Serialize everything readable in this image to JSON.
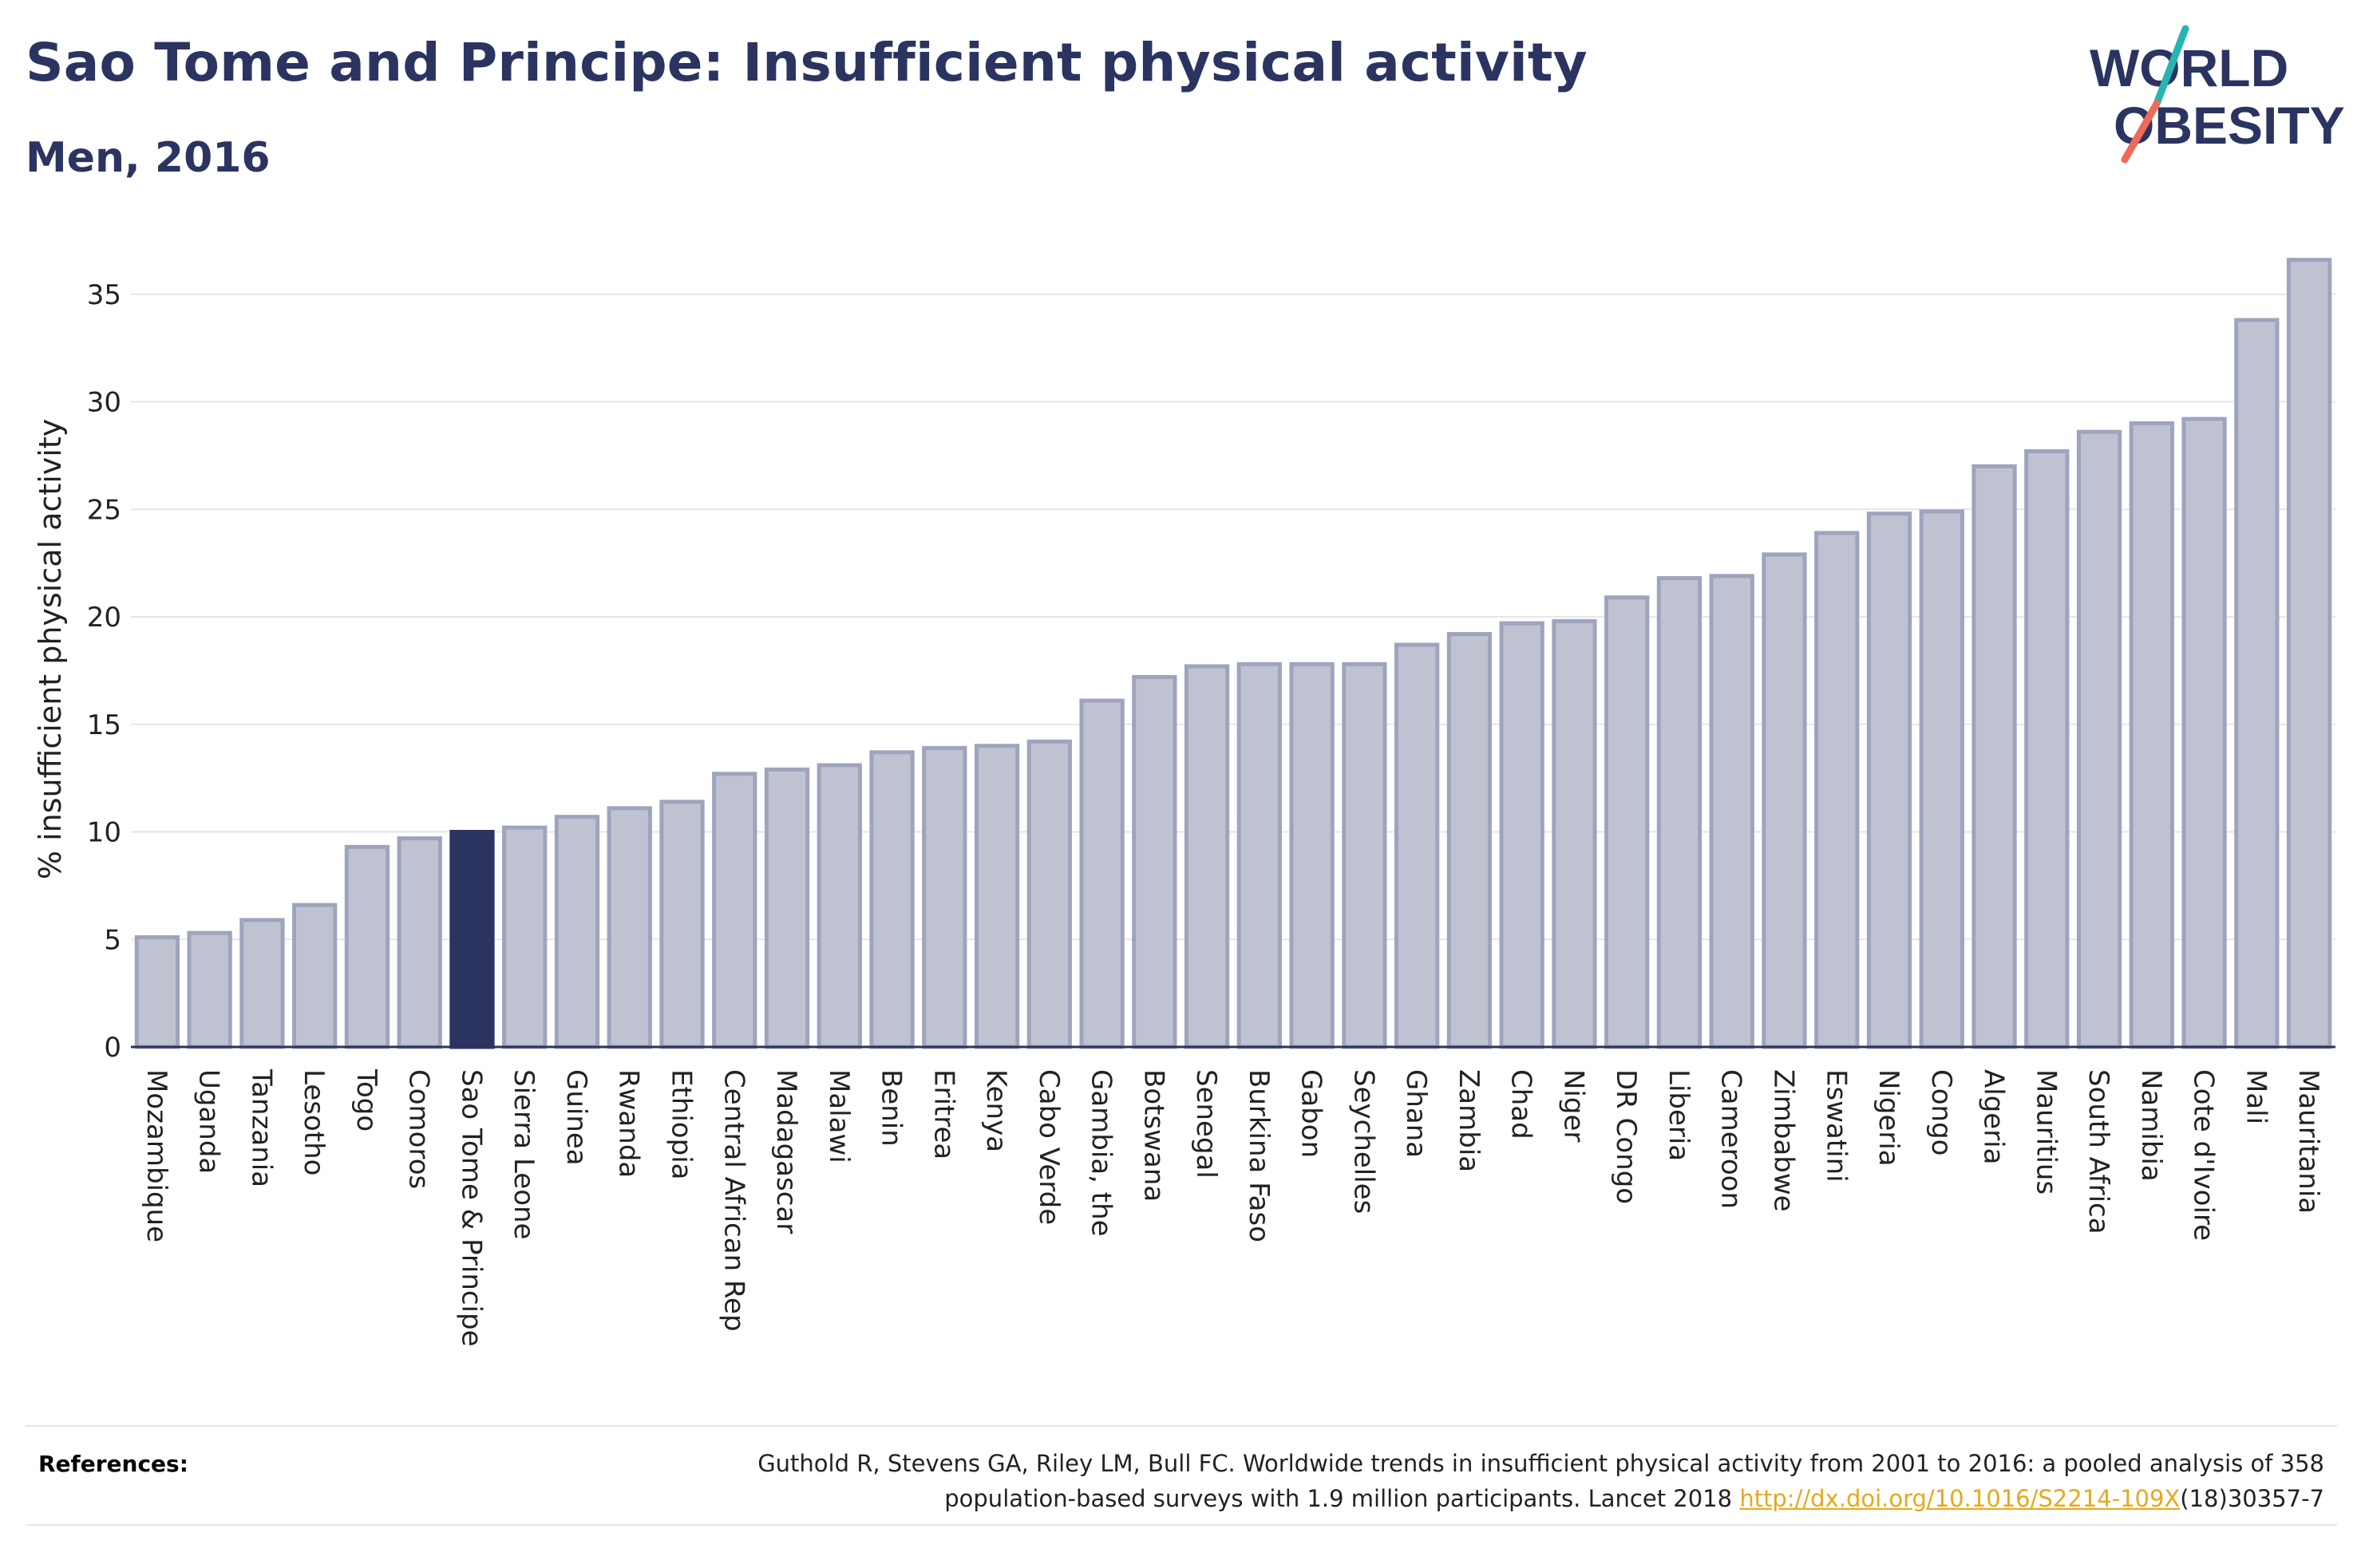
{
  "header": {
    "title": "Sao Tome and Principe: Insufficient physical activity",
    "subtitle": "Men, 2016"
  },
  "logo": {
    "line1": "WORLD",
    "line2": "OBESITY",
    "colors": {
      "text": "#2b3461",
      "slash_top": "#27b5b0",
      "slash_bottom": "#ef6b57"
    }
  },
  "colors": {
    "bar_fill": "#bfc3d1",
    "bar_stroke": "#9ea4bd",
    "highlight_fill": "#2b3461",
    "grid": "#e6e6ea",
    "axis": "#2b3461"
  },
  "chart_data": {
    "type": "bar",
    "ylabel": "% insufficient physical activity",
    "ylim": [
      0,
      37
    ],
    "yticks": [
      0,
      5,
      10,
      15,
      20,
      25,
      30,
      35
    ],
    "grid": true,
    "highlight": "Sao Tome & Principe",
    "categories": [
      "Mozambique",
      "Uganda",
      "Tanzania",
      "Lesotho",
      "Togo",
      "Comoros",
      "Sao Tome & Principe",
      "Sierra Leone",
      "Guinea",
      "Rwanda",
      "Ethiopia",
      "Central African Rep",
      "Madagascar",
      "Malawi",
      "Benin",
      "Eritrea",
      "Kenya",
      "Cabo Verde",
      "Gambia, the",
      "Botswana",
      "Senegal",
      "Burkina Faso",
      "Gabon",
      "Seychelles",
      "Ghana",
      "Zambia",
      "Chad",
      "Niger",
      "DR Congo",
      "Liberia",
      "Cameroon",
      "Zimbabwe",
      "Eswatini",
      "Nigeria",
      "Congo",
      "Algeria",
      "Mauritius",
      "South Africa",
      "Namibia",
      "Cote d'Ivoire",
      "Mali",
      "Mauritania"
    ],
    "values": [
      5.1,
      5.3,
      5.9,
      6.6,
      9.3,
      9.7,
      10.0,
      10.2,
      10.7,
      11.1,
      11.4,
      12.7,
      12.9,
      13.1,
      13.7,
      13.9,
      14.0,
      14.2,
      16.1,
      17.2,
      17.7,
      17.8,
      17.8,
      17.8,
      18.7,
      19.2,
      19.7,
      19.8,
      20.9,
      21.8,
      21.9,
      22.9,
      23.9,
      24.8,
      24.9,
      27.0,
      27.7,
      28.6,
      29.0,
      29.2,
      33.8,
      36.6
    ]
  },
  "references": {
    "label": "References:",
    "text": "Guthold R, Stevens GA, Riley LM, Bull FC. Worldwide trends in insufficient physical activity from 2001 to 2016: a pooled analysis of 358 population-based surveys with 1.9 million participants. Lancet 2018 ",
    "link_text": "http://dx.doi.org/10.1016/S2214-109X",
    "after_link": "(18)30357-7"
  }
}
